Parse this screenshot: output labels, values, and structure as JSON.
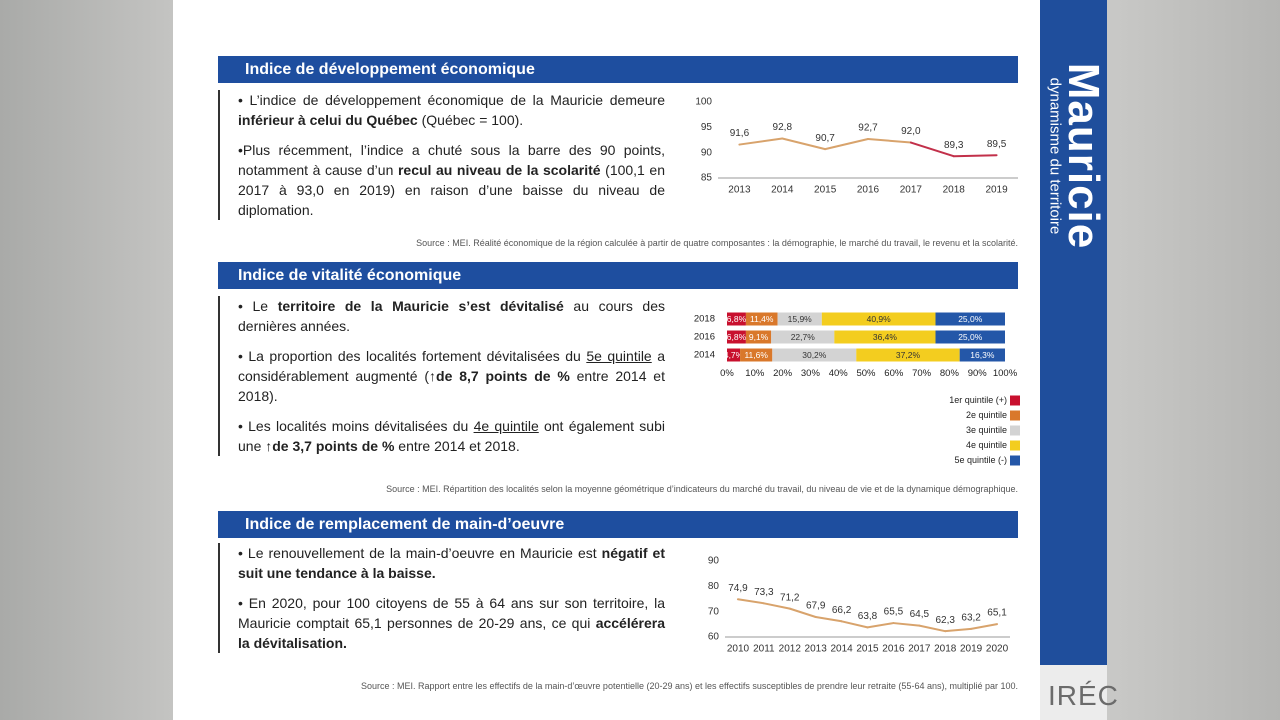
{
  "sidebar": {
    "title": "Mauricie",
    "subtitle": "dynamisme du territoire",
    "logo": "IRÉC"
  },
  "sections": [
    {
      "heading": "Indice de développement économique",
      "bullets": [
        [
          "• L’indice de développement économique de la Mauricie demeure ",
          "inférieur à celui du Québec",
          " (Québec = 100)."
        ],
        [
          "•Plus récemment, l’indice a chuté sous la barre des 90 points, notamment à cause d’un ",
          "recul au niveau de la scolarité",
          " (100,1 en 2017 à 93,0 en 2019) en raison d’une baisse du niveau de diplomation."
        ]
      ],
      "source": "Source : MEI. Réalité économique de la région calculée à partir de quatre composantes : la démographie, le marché du travail, le revenu et la scolarité."
    },
    {
      "heading": "Indice de vitalité économique",
      "bullets": [
        [
          "• Le ",
          "territoire de la Mauricie s’est dévitalisé",
          " au cours des dernières années."
        ],
        [
          "• La proportion des localités fortement dévitalisées du ",
          "5e quintile",
          " a considérablement augmenté (",
          "↑de 8,7 points de %",
          " entre 2014 et 2018)."
        ],
        [
          "• Les localités moins dévitalisées du ",
          "4e quintile",
          " ont également subi une ",
          "↑de 3,7 points de %",
          " entre 2014 et 2018."
        ]
      ],
      "source": "Source : MEI. Répartition des localités selon la moyenne géométrique d’indicateurs du marché du travail, du niveau de vie et de la dynamique démographique."
    },
    {
      "heading": "Indice de remplacement de main-d’oeuvre",
      "bullets": [
        [
          "• Le renouvellement de la main-d’oeuvre en Mauricie est ",
          "négatif et suit une tendance à la baisse."
        ],
        [
          "• En 2020, pour 100 citoyens de 55 à 64 ans sur son territoire, la Mauricie comptait 65,1 personnes de 20-29 ans, ce qui ",
          "accélérera la dévitalisation."
        ]
      ],
      "source": "Source : MEI. Rapport entre les effectifs de la main-d’œuvre potentielle (20-29 ans) et les effectifs susceptibles de prendre leur retraite (55-64 ans), multiplié par 100."
    }
  ],
  "chart_data": [
    {
      "type": "line",
      "categories": [
        "2013",
        "2014",
        "2015",
        "2016",
        "2017",
        "2018",
        "2019"
      ],
      "values": [
        91.6,
        92.8,
        90.7,
        92.7,
        92.0,
        89.3,
        89.5
      ],
      "value_labels": [
        "91,6",
        "92,8",
        "90,7",
        "92,7",
        "92,0",
        "89,3",
        "89,5"
      ],
      "segment_colors": [
        "#d8a36c",
        "#d8a36c",
        "#d8a36c",
        "#d8a36c",
        "#c2304a",
        "#c2304a"
      ],
      "ylim": [
        85,
        100
      ],
      "yticks": [
        85,
        90,
        95,
        100
      ],
      "grid": false
    },
    {
      "type": "bar",
      "orientation": "horizontal",
      "stacked": true,
      "categories": [
        "2018",
        "2016",
        "2014"
      ],
      "series": [
        {
          "name": "1er quintile (+)",
          "color": "#c8102e",
          "values": [
            6.8,
            6.8,
            4.7
          ],
          "value_labels": [
            "6,8%",
            "6,8%",
            "4,7%"
          ]
        },
        {
          "name": "2e quintile",
          "color": "#d9782b",
          "values": [
            11.4,
            9.1,
            11.6
          ],
          "value_labels": [
            "11,4%",
            "9,1%",
            "11,6%"
          ]
        },
        {
          "name": "3e quintile",
          "color": "#d3d3d3",
          "values": [
            15.9,
            22.7,
            30.2
          ],
          "value_labels": [
            "15,9%",
            "22,7%",
            "30,2%"
          ]
        },
        {
          "name": "4e quintile",
          "color": "#f3cd1f",
          "values": [
            40.9,
            36.4,
            37.2
          ],
          "value_labels": [
            "40,9%",
            "36,4%",
            "37,2%"
          ]
        },
        {
          "name": "5e quintile (-)",
          "color": "#2457a8",
          "values": [
            25.0,
            25.0,
            16.3
          ],
          "value_labels": [
            "25,0%",
            "25,0%",
            "16,3%"
          ]
        }
      ],
      "xlim": [
        0,
        100
      ],
      "xticks": [
        {
          "value": 0,
          "label": "0%"
        },
        {
          "value": 10,
          "label": "10%"
        },
        {
          "value": 20,
          "label": "20%"
        },
        {
          "value": 30,
          "label": "30%"
        },
        {
          "value": 40,
          "label": "40%"
        },
        {
          "value": 50,
          "label": "50%"
        },
        {
          "value": 60,
          "label": "60%"
        },
        {
          "value": 70,
          "label": "70%"
        },
        {
          "value": 80,
          "label": "80%"
        },
        {
          "value": 90,
          "label": "90%"
        },
        {
          "value": 100,
          "label": "100%"
        }
      ],
      "legend": "right"
    },
    {
      "type": "line",
      "categories": [
        "2010",
        "2011",
        "2012",
        "2013",
        "2014",
        "2015",
        "2016",
        "2017",
        "2018",
        "2019",
        "2020"
      ],
      "values": [
        74.9,
        73.3,
        71.2,
        67.9,
        66.2,
        63.8,
        65.5,
        64.5,
        62.3,
        63.2,
        65.1
      ],
      "value_labels": [
        "74,9",
        "73,3",
        "71,2",
        "67,9",
        "66,2",
        "63,8",
        "65,5",
        "64,5",
        "62,3",
        "63,2",
        "65,1"
      ],
      "color": "#d8a36c",
      "ylim": [
        60,
        90
      ],
      "yticks": [
        60,
        70,
        80,
        90
      ],
      "grid": false
    }
  ]
}
